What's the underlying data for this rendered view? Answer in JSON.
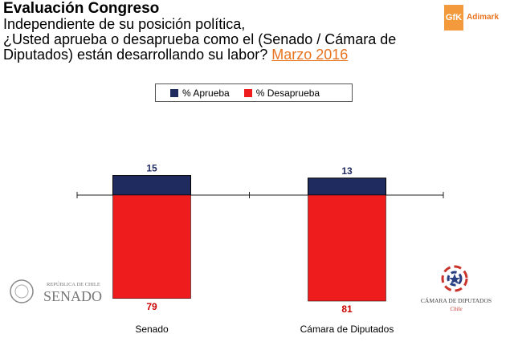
{
  "header": {
    "title": "Evaluación Congreso",
    "subtitle_lines": [
      "Independiente de su posición política,",
      "¿Usted aprueba o desaprueba como el (Senado / Cámara de",
      "Diputados) están desarrollando su labor?"
    ],
    "date_link": "Marzo 2016"
  },
  "brand": {
    "box_label": "GfK",
    "name": "Adimark"
  },
  "colors": {
    "approve": "#1f2a5e",
    "disapprove": "#ee1c1c",
    "accent": "#e8731f"
  },
  "logos": {
    "senado": {
      "line1": "REPÚBLICA DE CHILE",
      "line2": "SENADO"
    },
    "camara": {
      "line1": "CÁMARA DE DIPUTADOS",
      "line2": "Chile"
    }
  },
  "chart_data": {
    "type": "bar",
    "subtype": "diverging-stacked",
    "categories": [
      "Senado",
      "Cámara de Diputados"
    ],
    "series": [
      {
        "name": "% Aprueba",
        "values": [
          15,
          13
        ],
        "direction": "up"
      },
      {
        "name": "% Desaprueba",
        "values": [
          79,
          81
        ],
        "direction": "down"
      }
    ],
    "legend_position": "top-center",
    "grid": false
  }
}
